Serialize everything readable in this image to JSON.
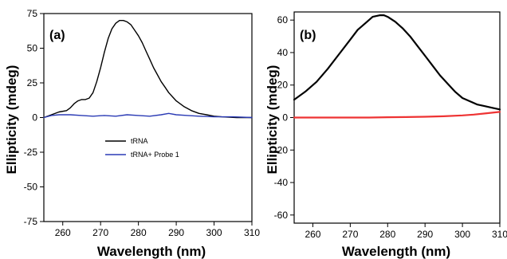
{
  "chart_data": [
    {
      "type": "line",
      "panel_label": "(a)",
      "xlabel": "Wavelength (nm)",
      "ylabel": "Ellipticity (mdeg)",
      "xlim": [
        255,
        310
      ],
      "ylim": [
        -75,
        75
      ],
      "x_ticks": [
        260,
        270,
        280,
        290,
        300,
        310
      ],
      "y_ticks": [
        -75,
        -50,
        -25,
        0,
        25,
        50,
        75
      ],
      "grid": false,
      "legend": "center",
      "series": [
        {
          "name": "tRNA",
          "color": "#000000",
          "x": [
            255,
            257,
            259,
            261,
            262,
            263,
            264,
            265,
            266,
            267,
            268,
            269,
            270,
            271,
            272,
            273,
            274,
            275,
            276,
            277,
            278,
            279,
            280,
            281,
            282,
            283,
            284,
            285,
            286,
            287,
            288,
            289,
            290,
            292,
            294,
            296,
            298,
            300,
            302,
            304,
            306,
            308,
            310
          ],
          "y": [
            0,
            2,
            4,
            5,
            7,
            10,
            12,
            13,
            13,
            14,
            18,
            26,
            36,
            47,
            57,
            64,
            68,
            70,
            70,
            69,
            67,
            63,
            59,
            54,
            48,
            42,
            36,
            31,
            26,
            22,
            18,
            15,
            12,
            8,
            5,
            3,
            2,
            1,
            0.5,
            0.3,
            0,
            0,
            0
          ]
        },
        {
          "name": "tRNA+ Probe 1",
          "color": "#2b3bb5",
          "x": [
            255,
            257,
            259,
            262,
            265,
            268,
            271,
            274,
            277,
            280,
            283,
            286,
            288,
            290,
            293,
            296,
            300,
            305,
            310
          ],
          "y": [
            0,
            1.5,
            2,
            2,
            1.5,
            1,
            1.5,
            1,
            2,
            1.5,
            1,
            2,
            3,
            2,
            1.5,
            1,
            0.5,
            0.5,
            0
          ]
        }
      ]
    },
    {
      "type": "line",
      "panel_label": "(b)",
      "xlabel": "Wavelength (nm)",
      "ylabel": "Ellipticity (mdeg)",
      "xlim": [
        255,
        310
      ],
      "ylim": [
        -65,
        65
      ],
      "x_ticks": [
        260,
        270,
        280,
        290,
        300,
        310
      ],
      "y_ticks": [
        -60,
        -40,
        -20,
        0,
        20,
        40,
        60
      ],
      "grid": false,
      "series": [
        {
          "color": "#000000",
          "x": [
            255,
            258,
            261,
            264,
            267,
            270,
            272,
            274,
            276,
            278,
            279,
            280,
            282,
            284,
            286,
            288,
            290,
            292,
            294,
            296,
            298,
            300,
            302,
            304,
            306,
            308,
            310
          ],
          "y": [
            11,
            16,
            22,
            30,
            39,
            48,
            54,
            58,
            62,
            63,
            63,
            62,
            59,
            55,
            50,
            44,
            38,
            32,
            26,
            21,
            16,
            12,
            10,
            8,
            7,
            6,
            5
          ]
        },
        {
          "color": "#ee3333",
          "x": [
            255,
            260,
            265,
            270,
            275,
            280,
            285,
            290,
            295,
            300,
            303,
            306,
            308,
            310
          ],
          "y": [
            0,
            0,
            0,
            0,
            0,
            0.2,
            0.3,
            0.5,
            0.8,
            1.3,
            1.8,
            2.5,
            3.0,
            3.5
          ]
        }
      ]
    }
  ]
}
